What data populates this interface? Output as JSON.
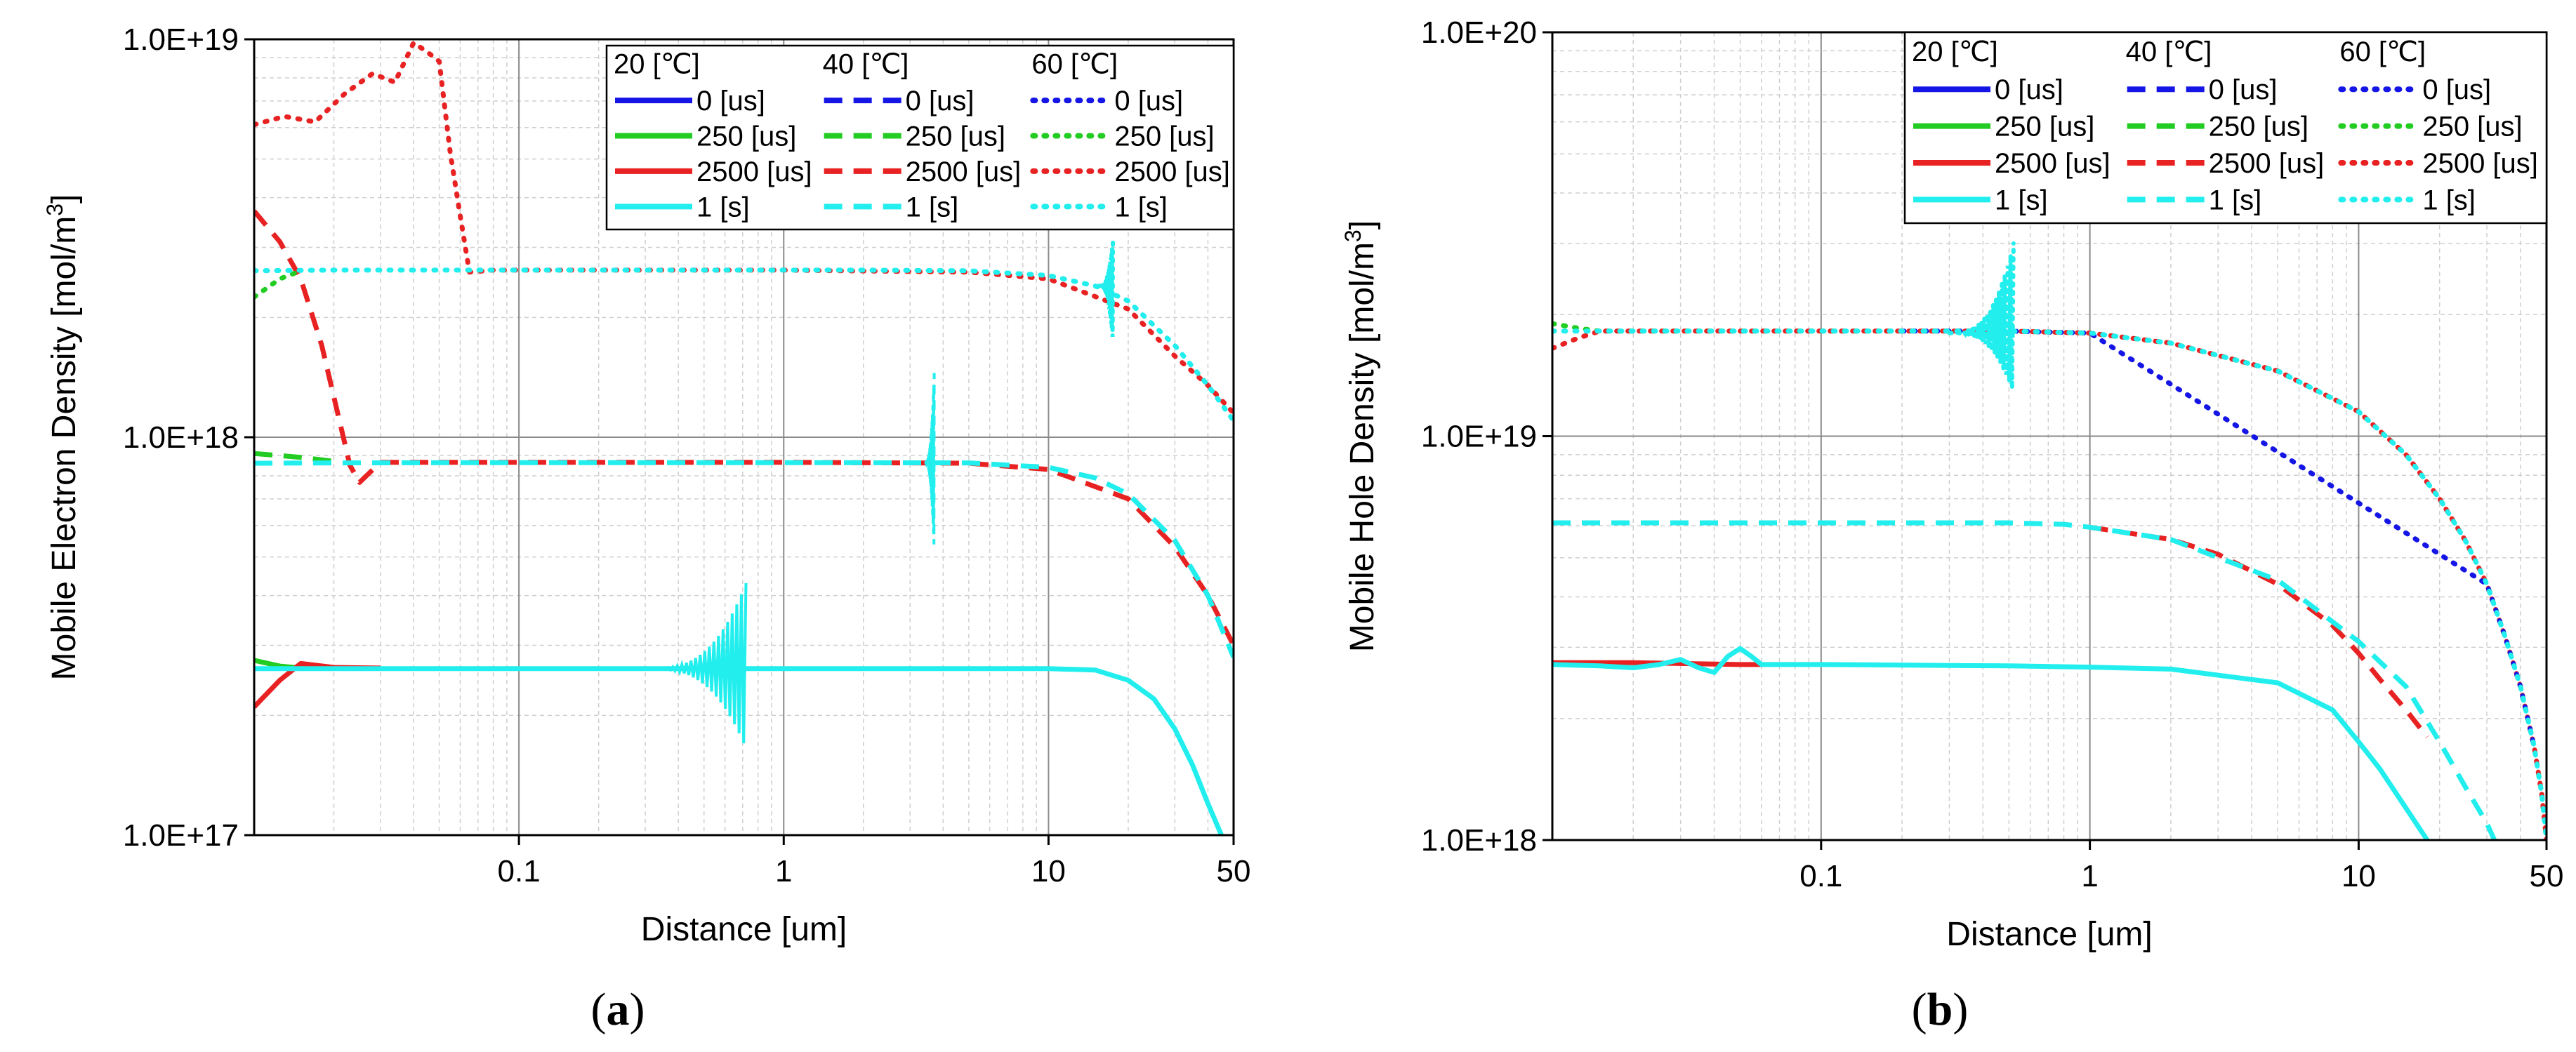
{
  "legend": {
    "groups": [
      {
        "name": "20 [℃]",
        "style": "solid"
      },
      {
        "name": "40 [℃]",
        "style": "dashed"
      },
      {
        "name": "60 [℃]",
        "style": "dotted"
      }
    ],
    "entries": [
      {
        "label": "0 [us]",
        "color": "#1515e6"
      },
      {
        "label": "250 [us]",
        "color": "#22cc22"
      },
      {
        "label": "2500 [us]",
        "color": "#e82222"
      },
      {
        "label": "1 [s]",
        "color": "#22eeee"
      }
    ]
  },
  "chart_data": [
    {
      "type": "line",
      "panel_label": "a",
      "xscale": "log",
      "yscale": "log",
      "xlabel": "Distance [um]",
      "ylabel": "Mobile Electron Density [mol/m",
      "ylabel_sup": "3",
      "ylabel_end": "]",
      "xlim": [
        0.01,
        50
      ],
      "ylim": [
        1e+17,
        1e+19
      ],
      "xticks": [
        {
          "v": 0.1,
          "label": "0.1"
        },
        {
          "v": 1,
          "label": "1"
        },
        {
          "v": 10,
          "label": "10"
        },
        {
          "v": 50,
          "label": "50"
        }
      ],
      "yticks": [
        {
          "v": 1e+17,
          "label": "1.0E+17"
        },
        {
          "v": 1e+18,
          "label": "1.0E+18"
        },
        {
          "v": 1e+19,
          "label": "1.0E+19"
        }
      ],
      "series": [
        {
          "name": "20 [℃] 250 [us]",
          "style": "solid",
          "color": "#22cc22",
          "x": [
            0.01,
            0.0125,
            0.015,
            0.02
          ],
          "y": [
            2.75e+17,
            2.66e+17,
            2.63e+17,
            2.63e+17
          ]
        },
        {
          "name": "20 [℃] 2500 [us]",
          "style": "solid",
          "color": "#e82222",
          "x": [
            0.01,
            0.0125,
            0.015,
            0.02,
            0.03
          ],
          "y": [
            2.1e+17,
            2.45e+17,
            2.7e+17,
            2.64e+17,
            2.63e+17
          ]
        },
        {
          "name": "20 [℃] 1 [s]",
          "style": "solid",
          "color": "#22eeee",
          "x": [
            0.01,
            0.015,
            0.05,
            0.1,
            0.2,
            0.4,
            0.6,
            1,
            2,
            5,
            10,
            15,
            20,
            25,
            30,
            35,
            40,
            45
          ],
          "y": [
            2.62e+17,
            2.62e+17,
            2.62e+17,
            2.62e+17,
            2.62e+17,
            2.62e+17,
            2.62e+17,
            2.62e+17,
            2.62e+17,
            2.62e+17,
            2.62e+17,
            2.6e+17,
            2.45e+17,
            2.2e+17,
            1.85e+17,
            1.5e+17,
            1.2e+17,
            1e+17
          ]
        },
        {
          "name": "40 [℃] 250 [us]",
          "style": "dashed",
          "color": "#22cc22",
          "x": [
            0.01,
            0.015,
            0.02
          ],
          "y": [
            9.1e+17,
            8.9e+17,
            8.7e+17
          ]
        },
        {
          "name": "40 [℃] 2500 [us]",
          "style": "dashed",
          "color": "#e82222",
          "x": [
            0.01,
            0.0125,
            0.015,
            0.018,
            0.021,
            0.023,
            0.025,
            0.03,
            0.05,
            0.1,
            0.5,
            1,
            5,
            10,
            20,
            30,
            40,
            50
          ],
          "y": [
            3.7e+18,
            3.1e+18,
            2.5e+18,
            1.7e+18,
            1.1e+18,
            8.5e+17,
            7.7e+17,
            8.65e+17,
            8.65e+17,
            8.65e+17,
            8.65e+17,
            8.65e+17,
            8.6e+17,
            8.3e+17,
            7e+17,
            5.3e+17,
            4e+17,
            3e+17
          ]
        },
        {
          "name": "40 [℃] 1 [s]",
          "style": "dashed",
          "color": "#22eeee",
          "x": [
            0.01,
            0.02,
            0.05,
            0.1,
            0.5,
            1,
            2,
            5,
            10,
            15,
            20,
            30,
            40,
            50
          ],
          "y": [
            8.6e+17,
            8.62e+17,
            8.63e+17,
            8.63e+17,
            8.63e+17,
            8.63e+17,
            8.63e+17,
            8.62e+17,
            8.4e+17,
            7.9e+17,
            7.2e+17,
            5.5e+17,
            4e+17,
            2.8e+17
          ]
        },
        {
          "name": "60 [℃] 250 [us]",
          "style": "dotted",
          "color": "#22cc22",
          "x": [
            0.01,
            0.0125,
            0.015
          ],
          "y": [
            2.25e+18,
            2.5e+18,
            2.62e+18
          ]
        },
        {
          "name": "60 [℃] 2500 [us]",
          "style": "dotted",
          "color": "#e82222",
          "x": [
            0.01,
            0.013,
            0.017,
            0.022,
            0.028,
            0.034,
            0.04,
            0.045,
            0.05,
            0.055,
            0.06,
            0.065,
            0.08,
            0.1,
            0.5,
            1,
            5,
            10,
            20,
            30,
            40,
            50
          ],
          "y": [
            6.1e+18,
            6.4e+18,
            6.2e+18,
            7.3e+18,
            8.2e+18,
            7.8e+18,
            9.8e+18,
            9.3e+18,
            8.8e+18,
            5.2e+18,
            3.6e+18,
            2.6e+18,
            2.63e+18,
            2.63e+18,
            2.63e+18,
            2.63e+18,
            2.6e+18,
            2.5e+18,
            2.1e+18,
            1.6e+18,
            1.35e+18,
            1.15e+18
          ]
        },
        {
          "name": "60 [℃] 1 [s]",
          "style": "dotted",
          "color": "#22eeee",
          "x": [
            0.01,
            0.02,
            0.05,
            0.1,
            0.5,
            1,
            2,
            5,
            10,
            15,
            20,
            30,
            40,
            50
          ],
          "y": [
            2.62e+18,
            2.63e+18,
            2.63e+18,
            2.63e+18,
            2.63e+18,
            2.63e+18,
            2.63e+18,
            2.62e+18,
            2.55e+18,
            2.4e+18,
            2.2e+18,
            1.7e+18,
            1.35e+18,
            1.1e+18
          ]
        }
      ],
      "spikes": [
        {
          "color": "#22eeee",
          "style": "solid",
          "x_start": 0.3,
          "x_end": 0.72,
          "y_center": 2.62e+17,
          "y_max": 4.3e+17,
          "y_min": 1.65e+17
        },
        {
          "color": "#22eeee",
          "style": "dashed",
          "x_start": 3.4,
          "x_end": 3.7,
          "y_center": 8.63e+17,
          "y_max": 1.45e+18,
          "y_min": 5.2e+17
        },
        {
          "color": "#22eeee",
          "style": "dotted",
          "x_start": 15.5,
          "x_end": 17.5,
          "y_center": 2.4e+18,
          "y_max": 3.1e+18,
          "y_min": 1.75e+18
        }
      ]
    },
    {
      "type": "line",
      "panel_label": "b",
      "xscale": "log",
      "yscale": "log",
      "xlabel": "Distance [um]",
      "ylabel": "Mobile Hole Density [mol/m",
      "ylabel_sup": "3",
      "ylabel_end": "]",
      "xlim": [
        0.01,
        50
      ],
      "ylim": [
        1e+18,
        1e+20
      ],
      "xticks": [
        {
          "v": 0.1,
          "label": "0.1"
        },
        {
          "v": 1,
          "label": "1"
        },
        {
          "v": 10,
          "label": "10"
        },
        {
          "v": 50,
          "label": "50"
        }
      ],
      "yticks": [
        {
          "v": 1e+18,
          "label": "1.0E+18"
        },
        {
          "v": 1e+19,
          "label": "1.0E+19"
        },
        {
          "v": 1e+20,
          "label": "1.0E+20"
        }
      ],
      "series": [
        {
          "name": "20 [℃] 2500 [us]",
          "style": "solid",
          "color": "#e82222",
          "x": [
            0.01,
            0.02,
            0.05,
            0.06
          ],
          "y": [
            2.75e+18,
            2.75e+18,
            2.72e+18,
            2.72e+18
          ]
        },
        {
          "name": "20 [℃] 1 [s]",
          "style": "solid",
          "color": "#22eeee",
          "x": [
            0.01,
            0.015,
            0.02,
            0.025,
            0.03,
            0.035,
            0.04,
            0.045,
            0.05,
            0.055,
            0.06,
            0.07,
            0.1,
            0.5,
            1,
            2,
            5,
            8,
            10,
            12,
            15,
            18
          ],
          "y": [
            2.72e+18,
            2.7e+18,
            2.67e+18,
            2.72e+18,
            2.8e+18,
            2.67e+18,
            2.6e+18,
            2.85e+18,
            2.98e+18,
            2.85e+18,
            2.72e+18,
            2.72e+18,
            2.72e+18,
            2.7e+18,
            2.68e+18,
            2.65e+18,
            2.45e+18,
            2.1e+18,
            1.75e+18,
            1.5e+18,
            1.2e+18,
            1e+18
          ]
        },
        {
          "name": "40 [℃] 2500 [us]",
          "style": "dashed",
          "color": "#e82222",
          "x": [
            1,
            2,
            3,
            5,
            8,
            10,
            12,
            15,
            18
          ],
          "y": [
            5.95e+18,
            5.55e+18,
            5.1e+18,
            4.3e+18,
            3.4e+18,
            2.9e+18,
            2.5e+18,
            2.1e+18,
            1.8e+18
          ]
        },
        {
          "name": "40 [℃] 1 [s]",
          "style": "dashed",
          "color": "#22eeee",
          "x": [
            0.01,
            0.02,
            0.05,
            0.1,
            0.5,
            0.8,
            1,
            2,
            5,
            10,
            15,
            20,
            25,
            30,
            32
          ],
          "y": [
            6.1e+18,
            6.1e+18,
            6.1e+18,
            6.1e+18,
            6.1e+18,
            6.05e+18,
            5.95e+18,
            5.55e+18,
            4.4e+18,
            3.1e+18,
            2.4e+18,
            1.75e+18,
            1.35e+18,
            1.1e+18,
            1e+18
          ]
        },
        {
          "name": "60 [℃] 250 [us]",
          "style": "dotted",
          "color": "#22cc22",
          "x": [
            0.01,
            0.0125,
            0.015,
            0.02,
            0.05,
            0.1,
            0.5,
            1,
            2,
            5,
            10,
            15,
            20,
            25,
            30,
            35,
            40,
            45,
            48,
            50
          ],
          "y": [
            1.9e+19,
            1.85e+19,
            1.82e+19,
            1.82e+19,
            1.82e+19,
            1.82e+19,
            1.82e+19,
            1.8e+19,
            1.7e+19,
            1.45e+19,
            1.15e+19,
            9e+18,
            7e+18,
            5.5e+18,
            4.3e+18,
            3.2e+18,
            2.4e+18,
            1.7e+18,
            1.3e+18,
            1e+18
          ]
        },
        {
          "name": "60 [℃] 2500 [us]",
          "style": "dotted",
          "color": "#e82222",
          "x": [
            0.01,
            0.0125,
            0.015,
            0.02,
            0.05,
            0.1,
            0.5,
            1,
            2,
            5,
            10,
            15,
            20,
            25,
            30,
            35,
            40,
            45,
            48,
            50
          ],
          "y": [
            1.65e+19,
            1.75e+19,
            1.82e+19,
            1.82e+19,
            1.82e+19,
            1.82e+19,
            1.82e+19,
            1.8e+19,
            1.7e+19,
            1.45e+19,
            1.15e+19,
            9e+18,
            7e+18,
            5.5e+18,
            4.3e+18,
            3.2e+18,
            2.4e+18,
            1.7e+18,
            1.3e+18,
            1e+18
          ]
        },
        {
          "name": "60 [℃] 0 [us]",
          "style": "dotted",
          "color": "#1515e6",
          "x": [
            0.2,
            0.3,
            0.5,
            1,
            30,
            35,
            40,
            45
          ],
          "y": [
            1.82e+19,
            1.82e+19,
            1.82e+19,
            1.8e+19,
            4.3e+18,
            3.2e+18,
            2.4e+18,
            1.7e+18
          ]
        },
        {
          "name": "60 [℃] 1 [s]",
          "style": "dotted",
          "color": "#22eeee",
          "x": [
            0.01,
            0.02,
            0.05,
            0.1,
            0.5,
            1,
            2,
            5,
            10,
            15,
            20,
            25,
            30,
            35,
            40,
            45,
            48,
            50
          ],
          "y": [
            1.82e+19,
            1.82e+19,
            1.82e+19,
            1.82e+19,
            1.82e+19,
            1.8e+19,
            1.7e+19,
            1.45e+19,
            1.15e+19,
            9e+18,
            7e+18,
            5.5e+18,
            4.3e+18,
            3.2e+18,
            2.4e+18,
            1.7e+18,
            1.3e+18,
            1e+18
          ]
        }
      ],
      "spikes": [
        {
          "color": "#22eeee",
          "style": "dotted",
          "x_start": 0.3,
          "x_end": 0.52,
          "y_center": 1.8e+19,
          "y_max": 3e+19,
          "y_min": 1.28e+19
        }
      ]
    }
  ]
}
